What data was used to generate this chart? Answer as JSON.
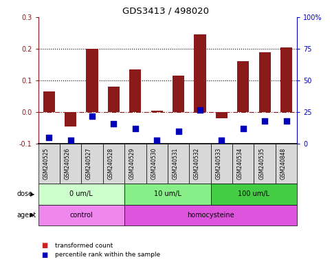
{
  "title": "GDS3413 / 498020",
  "samples": [
    "GSM240525",
    "GSM240526",
    "GSM240527",
    "GSM240528",
    "GSM240529",
    "GSM240530",
    "GSM240531",
    "GSM240532",
    "GSM240533",
    "GSM240534",
    "GSM240535",
    "GSM240848"
  ],
  "red_values": [
    0.065,
    -0.045,
    0.2,
    0.08,
    0.135,
    0.005,
    0.115,
    0.245,
    -0.02,
    0.16,
    0.19,
    0.205
  ],
  "blue_values_pct": [
    5,
    3,
    22,
    16,
    12,
    3,
    10,
    27,
    3,
    12,
    18,
    18
  ],
  "ylim_left": [
    -0.1,
    0.3
  ],
  "ylim_right": [
    0,
    100
  ],
  "yticks_left": [
    -0.1,
    0.0,
    0.1,
    0.2,
    0.3
  ],
  "yticks_right": [
    0,
    25,
    50,
    75,
    100
  ],
  "ytick_labels_right": [
    "0",
    "25",
    "50",
    "75",
    "100%"
  ],
  "hline_y": 0.0,
  "dotted_lines": [
    0.1,
    0.2
  ],
  "dose_groups": [
    {
      "label": "0 um/L",
      "start": 0,
      "end": 4,
      "color": "#ccffcc"
    },
    {
      "label": "10 um/L",
      "start": 4,
      "end": 8,
      "color": "#88ee88"
    },
    {
      "label": "100 um/L",
      "start": 8,
      "end": 12,
      "color": "#44cc44"
    }
  ],
  "agent_groups": [
    {
      "label": "control",
      "start": 0,
      "end": 4,
      "color": "#ee88ee"
    },
    {
      "label": "homocysteine",
      "start": 4,
      "end": 12,
      "color": "#dd55dd"
    }
  ],
  "bar_color": "#8B1A1A",
  "blue_color": "#0000BB",
  "red_legend_color": "#cc2222",
  "blue_legend_color": "#0000BB",
  "legend_red_label": "transformed count",
  "legend_blue_label": "percentile rank within the sample",
  "dose_label": "dose",
  "agent_label": "agent",
  "bar_width": 0.55,
  "blue_marker_size": 28
}
